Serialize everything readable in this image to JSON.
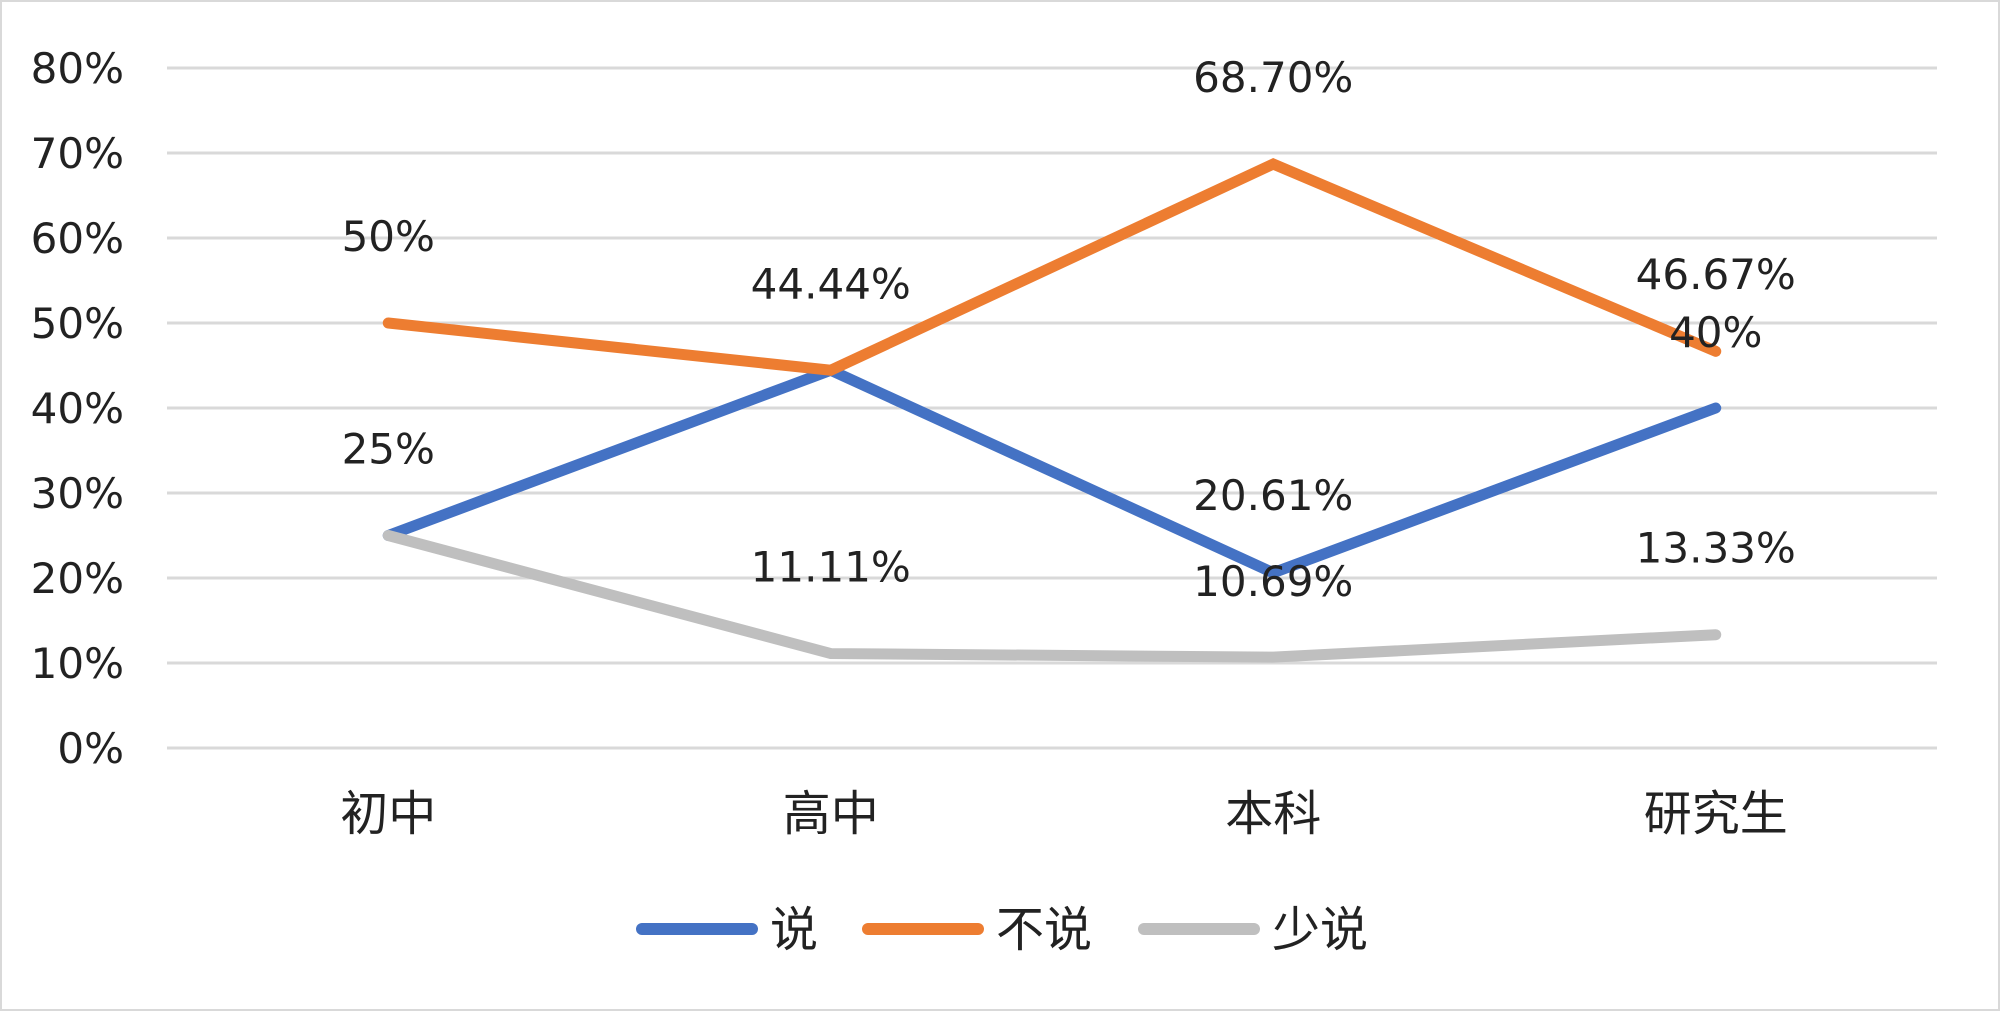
{
  "chart_data": {
    "type": "line",
    "categories": [
      "初中",
      "高中",
      "本科",
      "研究生"
    ],
    "series": [
      {
        "name": "说",
        "color": "#4472c4",
        "values": [
          25,
          44.44,
          20.61,
          40
        ],
        "labels": [
          "25%",
          "44.44%",
          "20.61%",
          "40%"
        ]
      },
      {
        "name": "不说",
        "color": "#ed7d31",
        "values": [
          50,
          44.44,
          68.7,
          46.67
        ],
        "labels": [
          "50%",
          "",
          "68.70%",
          "46.67%"
        ]
      },
      {
        "name": "少说",
        "color": "#bfbfbf",
        "values": [
          25,
          11.11,
          10.69,
          13.33
        ],
        "labels": [
          "",
          "11.11%",
          "10.69%",
          "13.33%"
        ]
      }
    ],
    "yticks": [
      "0%",
      "10%",
      "20%",
      "30%",
      "40%",
      "50%",
      "60%",
      "70%",
      "80%"
    ],
    "ylim": [
      0,
      80
    ],
    "grid": true,
    "legend_position": "bottom",
    "title": "",
    "xlabel": "",
    "ylabel": ""
  }
}
